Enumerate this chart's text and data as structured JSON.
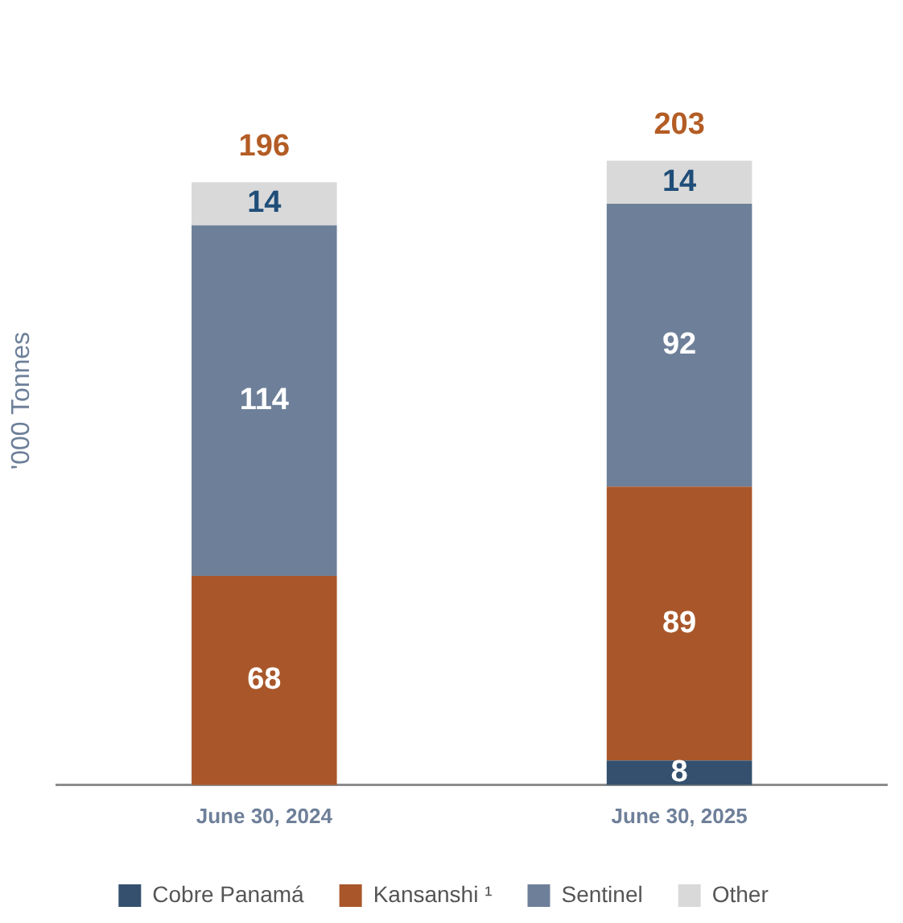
{
  "chart_data": {
    "type": "bar",
    "ylabel": "'000 Tonnes",
    "categories": [
      "June 30, 2024",
      "June 30, 2025"
    ],
    "stacked": true,
    "data_labels": true,
    "legend": "bottom",
    "grid": false,
    "series": [
      {
        "name": "Cobre Panamá",
        "color": "#34506e",
        "values": [
          null,
          8
        ]
      },
      {
        "name": "Kansanshi ¹",
        "color": "#a9572a",
        "values": [
          68,
          89
        ]
      },
      {
        "name": "Sentinel",
        "color": "#6e8099",
        "values": [
          114,
          92
        ]
      },
      {
        "name": "Other",
        "color": "#d9d9d9",
        "values": [
          14,
          14
        ]
      }
    ],
    "totals": [
      "196",
      "203"
    ]
  }
}
